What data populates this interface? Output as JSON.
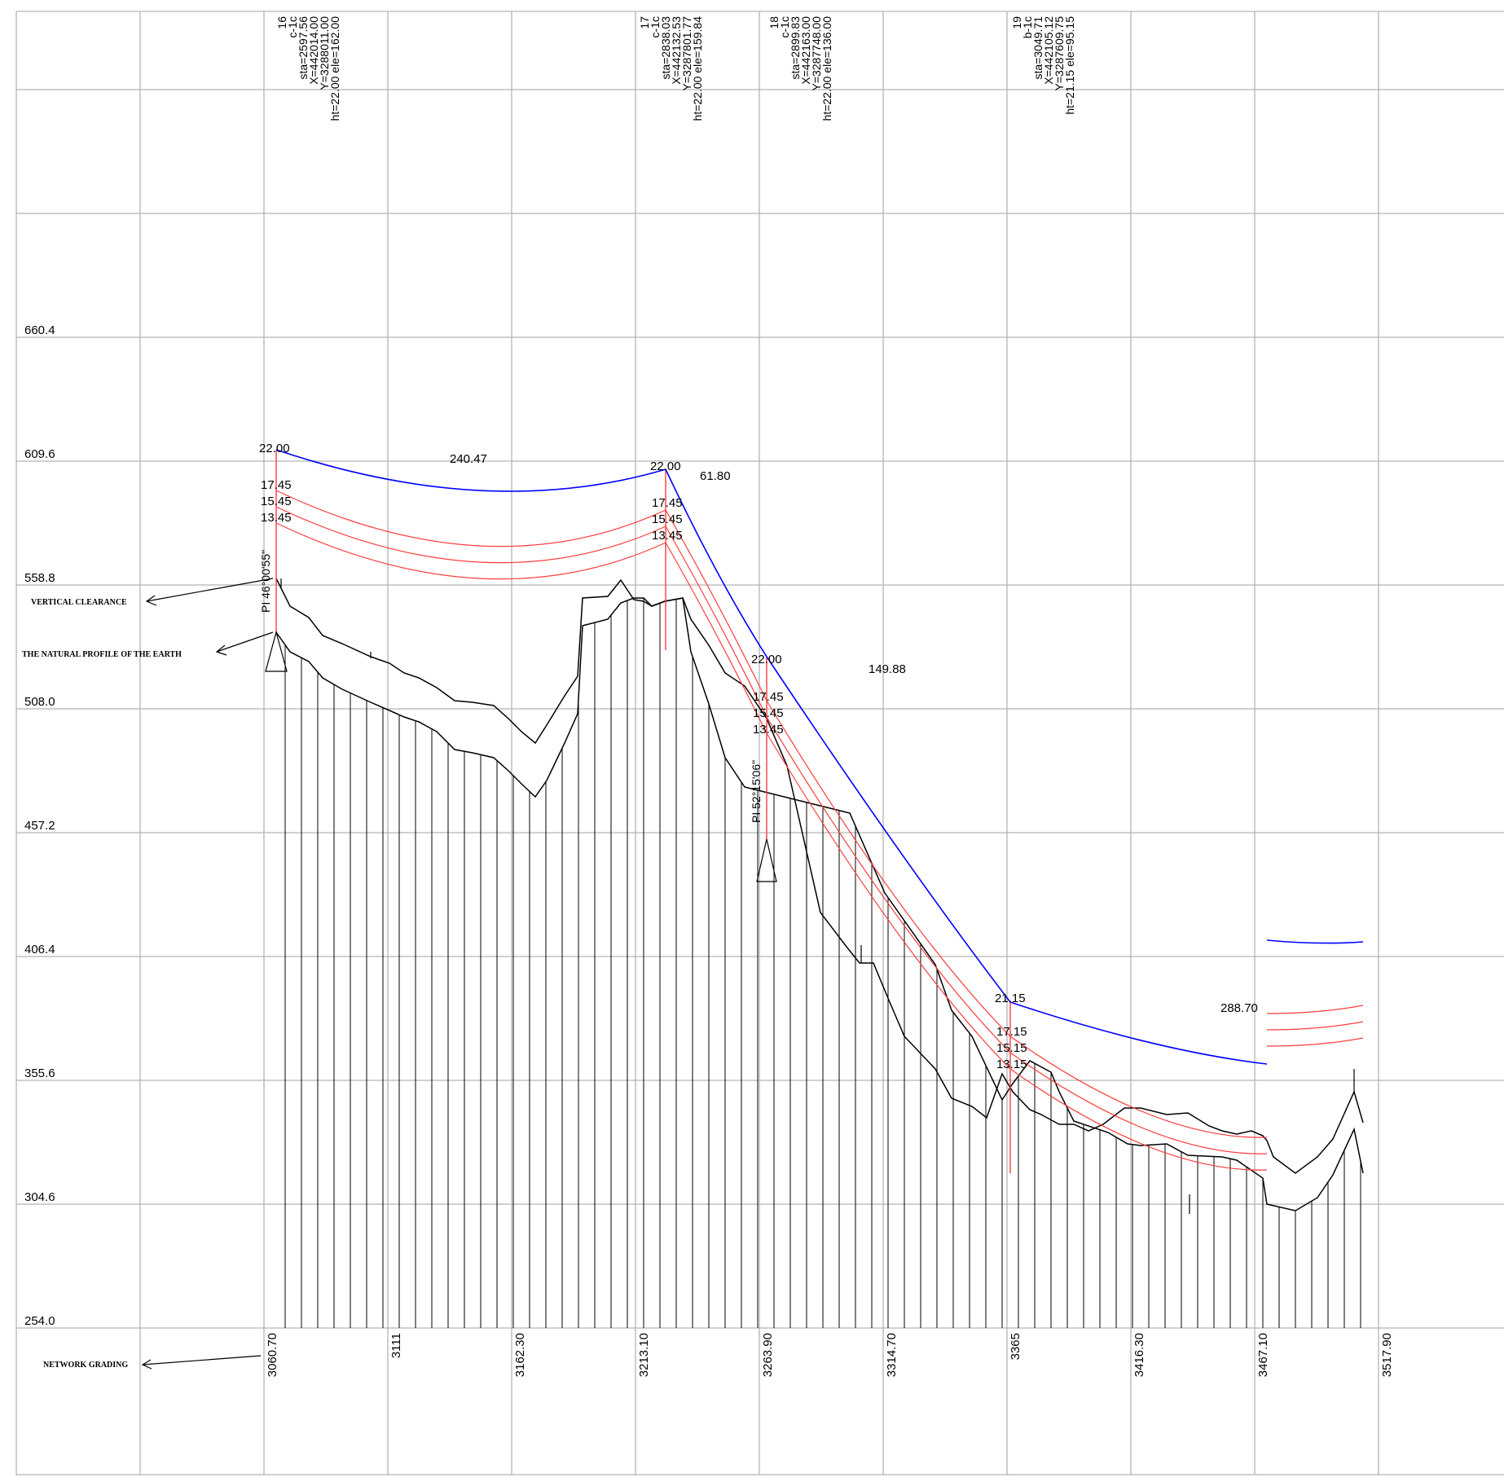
{
  "elevation_labels": [
    "660.4",
    "609.6",
    "558.8",
    "508.0",
    "457.2",
    "406.4",
    "355.6",
    "304.6",
    "254.0"
  ],
  "station_labels": [
    "3060.70",
    "3111",
    "3162.30",
    "3213.10",
    "3263.90",
    "3314.70",
    "3365",
    "3416.30",
    "3467.10",
    "3517.90"
  ],
  "annotations": {
    "vertical_clearance": "VERTICAL CLEARANCE",
    "natural_profile": "THE NATURAL PROFILE OF THE EARTH",
    "network_grading": "NETWORK GRADING"
  },
  "towers": [
    {
      "lines": [
        "16",
        "c-1c",
        "sta=2597.56",
        "X=442014.00",
        "Y=3288011.00",
        "ht=22.00 ele=162.00"
      ],
      "conductor_heights": [
        "22.00",
        "17.45",
        "15.45",
        "13.45"
      ],
      "pi_angle": "PI 46°00'55\""
    },
    {
      "lines": [
        "17",
        "c-1c",
        "sta=2838.03",
        "X=442132.53",
        "Y=3287801.77",
        "ht=22.00 ele=159.84"
      ],
      "conductor_heights": [
        "22.00",
        "17.45",
        "15.45",
        "13.45"
      ],
      "pi_angle": ""
    },
    {
      "lines": [
        "18",
        "c-1c",
        "sta=2899.83",
        "X=442163.00",
        "Y=3287748.00",
        "ht=22.00 ele=136.00"
      ],
      "conductor_heights": [
        "22.00",
        "17.45",
        "15.45",
        "13.45"
      ],
      "pi_angle": "PI 52°15'06\""
    },
    {
      "lines": [
        "19",
        "b-1c",
        "sta=3049.71",
        "X=442105.12",
        "Y=3287609.75",
        "ht=21.15 ele=95.15"
      ],
      "conductor_heights": [
        "21.15",
        "17.15",
        "15.15",
        "13.15"
      ],
      "pi_angle": ""
    }
  ],
  "span_lengths": [
    "240.47",
    "61.80",
    "149.88",
    "288.70"
  ],
  "colors": {
    "grid": "#b4b4b4",
    "ground_wire": "#0000ff",
    "conductors": "#ff3c3c",
    "terrain": "#000000"
  }
}
